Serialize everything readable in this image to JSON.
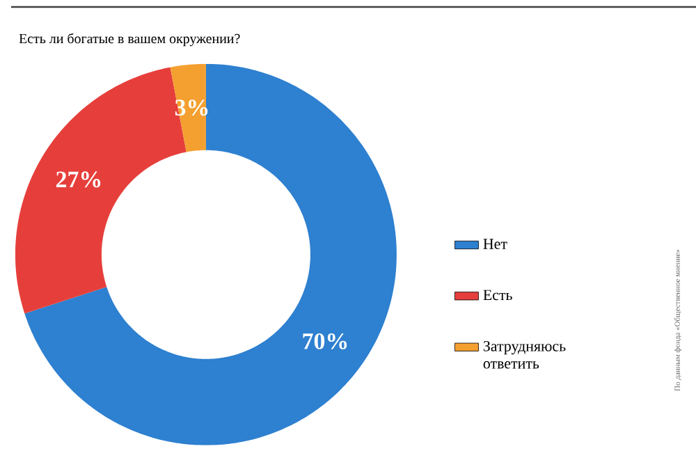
{
  "chart_data": {
    "type": "donut",
    "title": "Есть ли богатые в вашем окружении?",
    "categories": [
      "Нет",
      "Есть",
      "Затрудняюсь ответить"
    ],
    "values": [
      70,
      27,
      3
    ],
    "colors": [
      "#2e80d0",
      "#e63f3b",
      "#f4a030"
    ],
    "value_labels": [
      "70%",
      "27%",
      "3%"
    ],
    "legend": "right",
    "annotations": [
      "По данным фонда «Общественное мнение»"
    ]
  }
}
